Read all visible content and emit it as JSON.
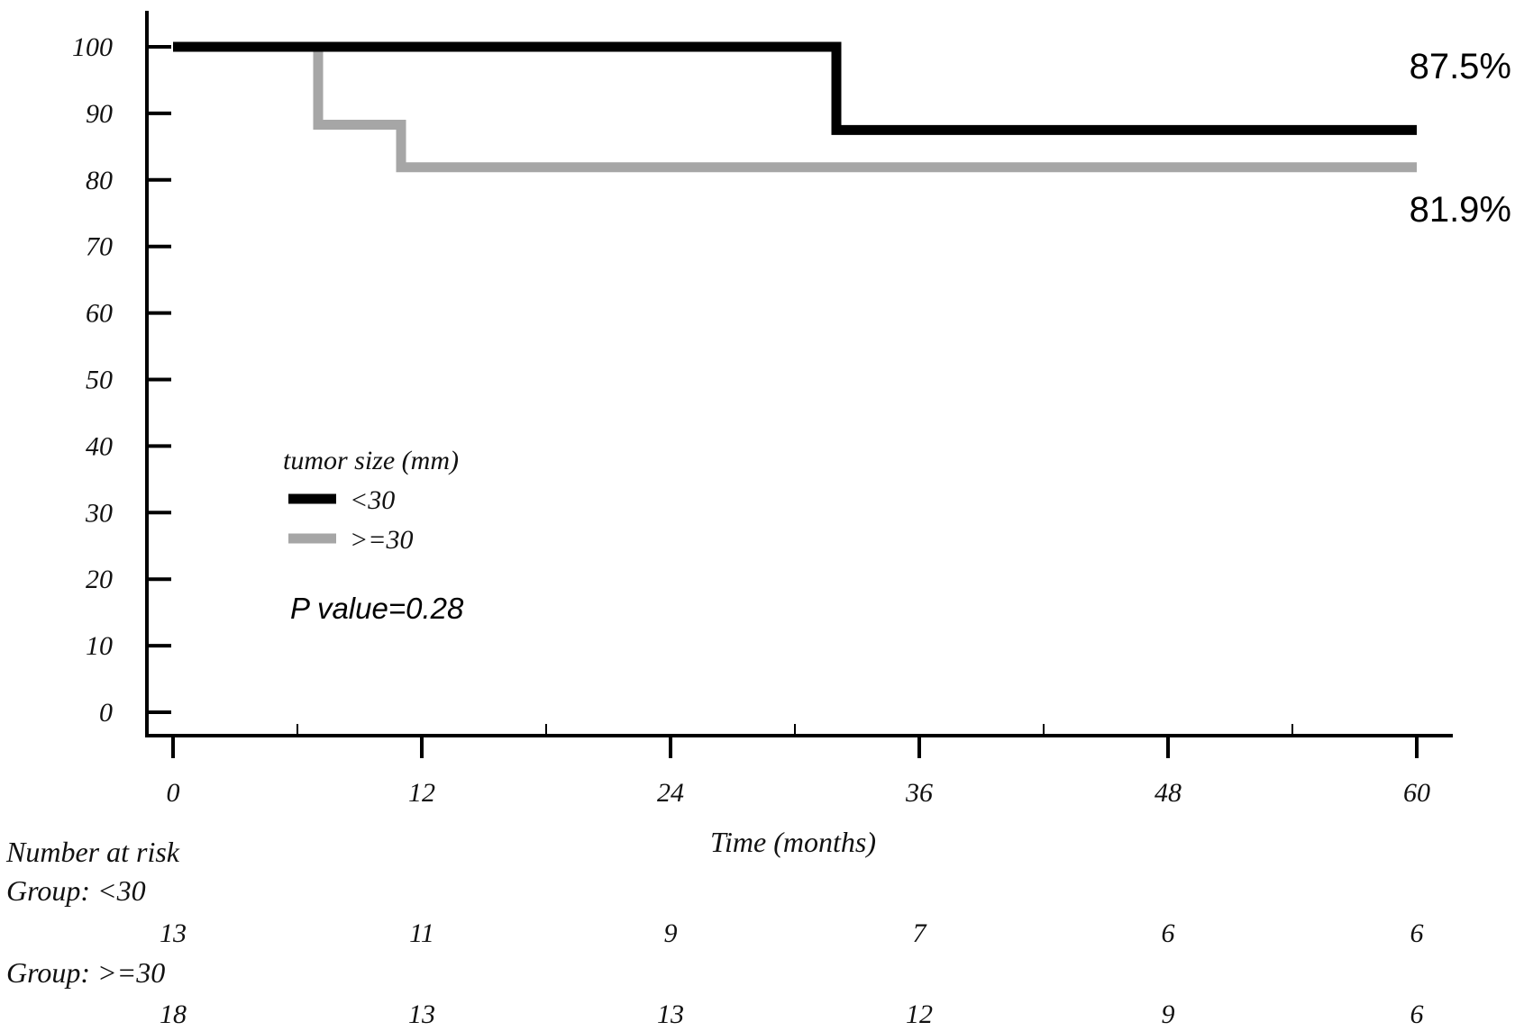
{
  "chart_data": {
    "type": "line",
    "subtype": "kaplan-meier step",
    "xlabel": "Time (months)",
    "ylabel": "",
    "xlim": [
      0,
      60
    ],
    "ylim": [
      0,
      100
    ],
    "x_ticks": [
      0,
      12,
      24,
      36,
      48,
      60
    ],
    "x_ticks_labels": [
      "0",
      "12",
      "24",
      "36",
      "48",
      "60"
    ],
    "x_minor_ticks": [
      6,
      18,
      30,
      42,
      54
    ],
    "y_ticks": [
      0,
      10,
      20,
      30,
      40,
      50,
      60,
      70,
      80,
      90,
      100
    ],
    "y_ticks_labels": [
      "0",
      "10",
      "20",
      "30",
      "40",
      "50",
      "60",
      "70",
      "80",
      "90",
      "100"
    ],
    "grid": false,
    "legend": {
      "title": "tumor size (mm)",
      "placement": "center-left"
    },
    "series": [
      {
        "name": "<30",
        "color": "#000000",
        "x": [
          0,
          32,
          32,
          60
        ],
        "y": [
          100,
          100,
          87.5,
          87.5
        ],
        "end_label": "87.5%"
      },
      {
        "name": ">=30",
        "color": "#a6a6a6",
        "x": [
          0,
          7,
          7,
          11,
          11,
          60
        ],
        "y": [
          100,
          100,
          88.3,
          88.3,
          81.9,
          81.9
        ],
        "end_label": "81.9%"
      }
    ],
    "annotations": {
      "p_value": "P value=0.28"
    },
    "risk_table": {
      "title": "Number at risk",
      "times": [
        0,
        12,
        24,
        36,
        48,
        60
      ],
      "groups": [
        {
          "label": "Group: <30",
          "counts": [
            "13",
            "11",
            "9",
            "7",
            "6",
            "6"
          ]
        },
        {
          "label": "Group: >=30",
          "counts": [
            "18",
            "13",
            "13",
            "12",
            "9",
            "6"
          ]
        }
      ]
    }
  }
}
